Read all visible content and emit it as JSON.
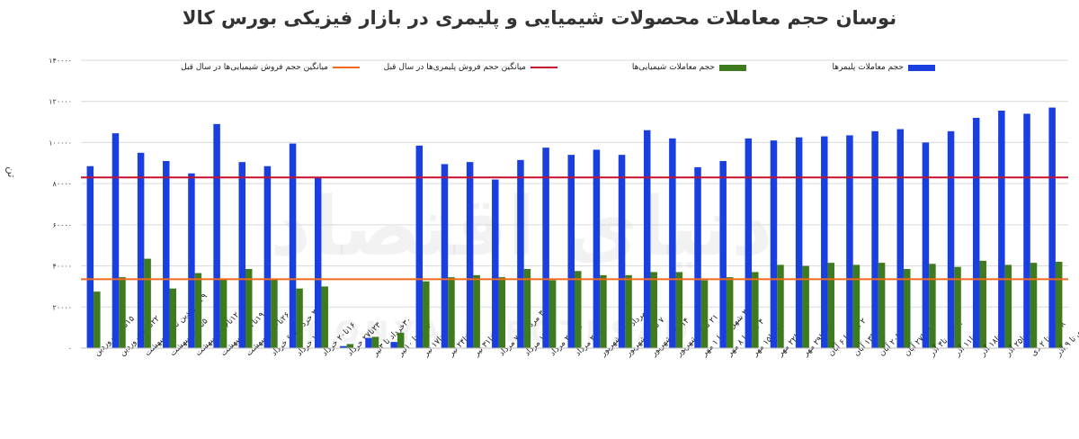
{
  "chart_data": {
    "type": "bar",
    "title": "نوسان حجم معاملات محصولات شیمیایی و پلیمری در بازار فیزیکی بورس کالا",
    "ylabel": "تن",
    "ylim": [
      0,
      140000
    ],
    "yticks": [
      "۱۴۰۰۰۰",
      "۱۲۰۰۰۰",
      "۱۰۰۰۰۰",
      "۸۰۰۰۰",
      "۶۰۰۰۰",
      "۴۰۰۰۰",
      "۲۰۰۰۰",
      "۰"
    ],
    "ytick_values": [
      140000,
      120000,
      100000,
      80000,
      60000,
      40000,
      20000,
      0
    ],
    "grid": true,
    "legend_position": "top",
    "categories": [
      "۱۵تا۱۹ فروردین",
      "۲۲تا۲۶ فروردین",
      "۲۹فروردین تا۳ اردیبهشت",
      "۵تا۹ اردیبهشت",
      "۱۲تا۱۶ اردیبهشت",
      "۱۹تا۲۳ اردیبهشت",
      "۲۶تا۳۰ اردیبهشت",
      "۲ خرداد تا ۶ خرداد",
      "۹تا۱۳ خرداد",
      "۱۶تا۲۰ خرداد",
      "۲۳تا۲۷ خرداد",
      "۳۰خرداد تا ۳تیر",
      "۶ تیر تا ۱۰تیر",
      "۱۳تا۱۷ تیر",
      "۲۰تا۲۴ تیر",
      "۲۷تا۳۱ تیر",
      "۳ مرداد تا ۷ مرداد",
      "۱۰تا۱۴ مرداد",
      "۱۷تا۲۱ مرداد",
      "۲۴تا۲۸ مرداد",
      "۳۱ مرداد تا ۴ شهریور",
      "۷ تا ۱۱ شهریور",
      "۱۴تا۱۸ شهریور",
      "۲۱ تا ۲۵ شهریور",
      "۲۸ شهریور تا ۱ مهر",
      "۴ مهر تا ۸ مهر",
      "۱۱تا۱۵ مهر",
      "۱۸تا۲۲ مهر",
      "۲۵تا۲۹ مهر",
      "۲ آبان تا ۶ آبان",
      "۹تا۱۳ آبان",
      "۱۶تا۲۰ آبان",
      "۲۳تا۲۷ آبان",
      "۳۰آبان تا۴ آذر",
      "۷تا۱۱ آذر",
      "۱۴تا۱۸ آذر",
      "۲۱تا۲۵ آذر",
      "۲۸آذر تا ۲ دی",
      "۵ دی تا ۹ آذر"
    ],
    "series": [
      {
        "name": "حجم معاملات پلیمرها",
        "color": "#1a3fe0",
        "values": [
          88500,
          104500,
          95000,
          91000,
          85000,
          109000,
          90500,
          88500,
          99500,
          83000,
          1000,
          5000,
          3000,
          98500,
          89500,
          90500,
          82000,
          91500,
          97500,
          94000,
          96500,
          94000,
          106000,
          102000,
          88000,
          91000,
          102000,
          101000,
          102500,
          103000,
          103500,
          105500,
          106500,
          100000,
          105500,
          112000,
          115500,
          114000,
          117000
        ]
      },
      {
        "name": "حجم معاملات شیمیایی‌ها",
        "color": "#3e7a1e",
        "values": [
          27500,
          34500,
          43500,
          29000,
          36500,
          33500,
          38500,
          33500,
          29000,
          30000,
          2000,
          5500,
          7500,
          32500,
          34500,
          35500,
          34500,
          38500,
          33000,
          37500,
          35500,
          35500,
          37000,
          37000,
          33000,
          34500,
          37000,
          40500,
          40000,
          41500,
          40500,
          41500,
          38500,
          41000,
          39500,
          42500,
          40500,
          41500,
          42000
        ]
      }
    ],
    "reference_lines": [
      {
        "name": "میانگین حجم فروش پلیمری‌ها در سال قبل",
        "value": 83000,
        "color": "#c8102e"
      },
      {
        "name": "میانگین حجم فروش شیمیایی‌ها در سال قبل",
        "value": 33500,
        "color": "#f26b1d"
      }
    ]
  }
}
